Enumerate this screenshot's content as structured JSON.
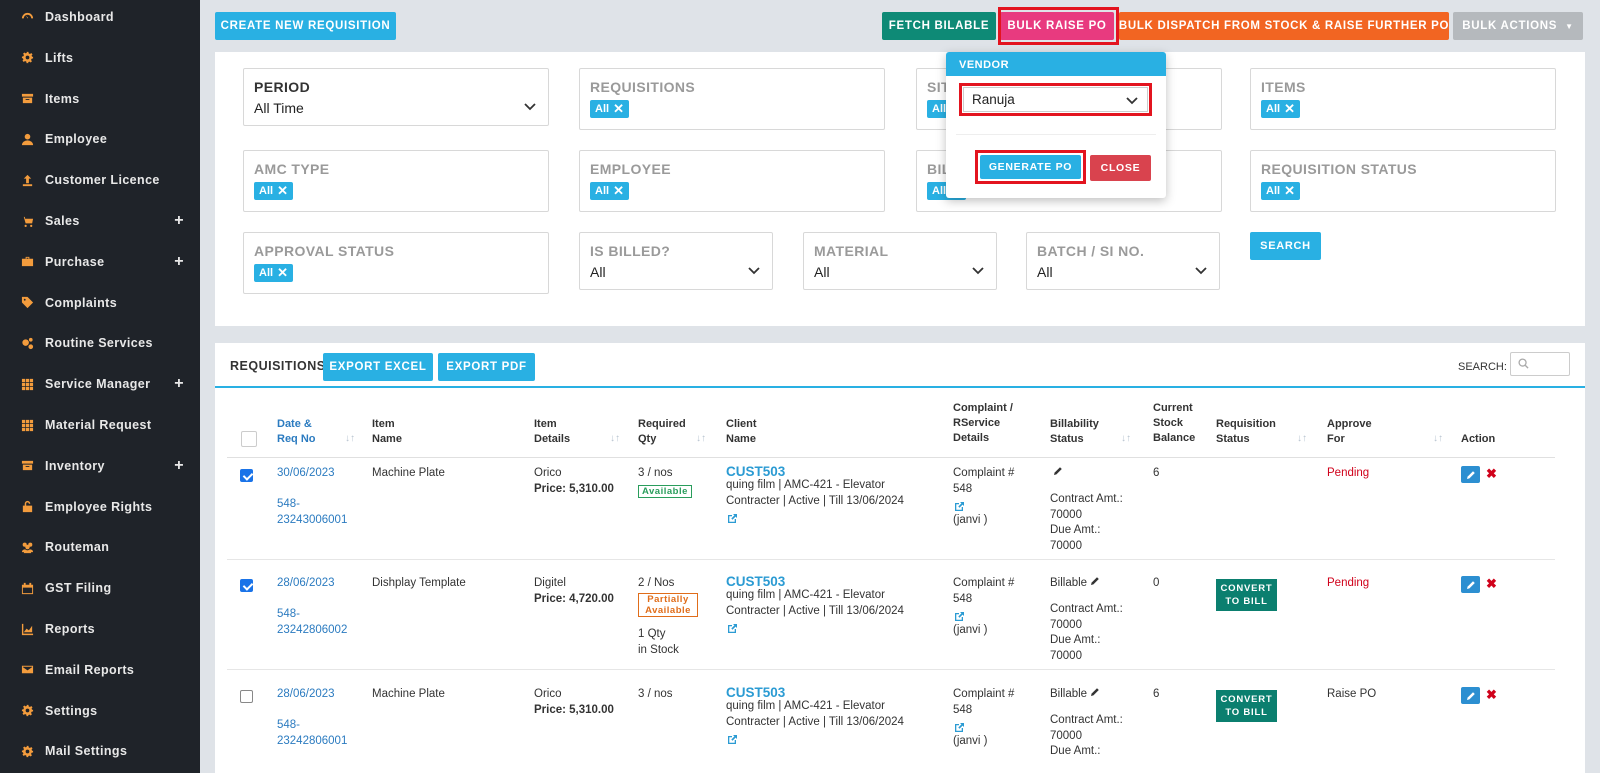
{
  "colors": {
    "sidebar_bg": "#1f2329",
    "icon_orange": "#f39c3d",
    "primary": "#29b0e3",
    "teal": "#0e8a76",
    "pink": "#e83a7f",
    "orange": "#f26522",
    "grey": "#b5b9bd",
    "danger": "#d9434e",
    "highlight": "#e3141f"
  },
  "sidebar": {
    "items": [
      {
        "label": "Dashboard",
        "icon": "dashboard-icon",
        "expandable": false
      },
      {
        "label": "Lifts",
        "icon": "gear-icon",
        "expandable": false
      },
      {
        "label": "Items",
        "icon": "archive-icon",
        "expandable": false
      },
      {
        "label": "Employee",
        "icon": "user-icon",
        "expandable": false
      },
      {
        "label": "Customer Licence",
        "icon": "upload-arrow-icon",
        "expandable": false
      },
      {
        "label": "Sales",
        "icon": "cart-icon",
        "expandable": true
      },
      {
        "label": "Purchase",
        "icon": "briefcase-icon",
        "expandable": true
      },
      {
        "label": "Complaints",
        "icon": "tag-icon",
        "expandable": false
      },
      {
        "label": "Routine Services",
        "icon": "cogs-icon",
        "expandable": false
      },
      {
        "label": "Service Manager",
        "icon": "grid-icon",
        "expandable": true
      },
      {
        "label": "Material Request",
        "icon": "grid-icon",
        "expandable": false
      },
      {
        "label": "Inventory",
        "icon": "archive-icon",
        "expandable": true
      },
      {
        "label": "Employee Rights",
        "icon": "unlock-icon",
        "expandable": false
      },
      {
        "label": "Routeman",
        "icon": "users-icon",
        "expandable": false
      },
      {
        "label": "GST Filing",
        "icon": "calendar-icon",
        "expandable": false
      },
      {
        "label": "Reports",
        "icon": "area-chart-icon",
        "expandable": false
      },
      {
        "label": "Email Reports",
        "icon": "envelope-icon",
        "expandable": false
      },
      {
        "label": "Settings",
        "icon": "gear-icon",
        "expandable": false
      },
      {
        "label": "Mail Settings",
        "icon": "gear-icon",
        "expandable": false
      }
    ],
    "plus_symbol": "+"
  },
  "toolbar": {
    "create_label": "CREATE NEW REQUISITION",
    "fetch_label": "FETCH BILABLE",
    "bulk_raise_label": "BULK RAISE PO",
    "bulk_dispatch_label": "BULK DISPATCH FROM STOCK & RAISE FURTHER PO",
    "bulk_actions_label": "BULK ACTIONS"
  },
  "filters": {
    "period": {
      "label": "PERIOD",
      "value": "All Time"
    },
    "requisitions": {
      "label": "REQUISITIONS",
      "tag": "All"
    },
    "site": {
      "label": "SIT",
      "tag": "All"
    },
    "items": {
      "label": "ITEMS",
      "tag": "All"
    },
    "amc_type": {
      "label": "AMC TYPE",
      "tag": "All"
    },
    "employee": {
      "label": "EMPLOYEE",
      "tag": "All"
    },
    "billing": {
      "label": "BIL",
      "tag": "All"
    },
    "requisition_status": {
      "label": "REQUISITION STATUS",
      "tag": "All"
    },
    "approval_status": {
      "label": "APPROVAL STATUS",
      "tag": "All"
    },
    "is_billed": {
      "label": "IS BILLED?",
      "value": "All"
    },
    "material": {
      "label": "MATERIAL",
      "value": "All"
    },
    "batch": {
      "label": "BATCH / SI NO.",
      "value": "All"
    },
    "search_label": "SEARCH",
    "tag_close": "✕"
  },
  "vendor_popover": {
    "title": "VENDOR",
    "selected": "Ranuja",
    "generate_label": "GENERATE PO",
    "close_label": "CLOSE"
  },
  "requisitions": {
    "title": "REQUISITIONS",
    "export_excel": "EXPORT EXCEL",
    "export_pdf": "EXPORT PDF",
    "search_label": "SEARCH:",
    "search_value": "",
    "headers": {
      "date_a": "Date &",
      "date_b": "Req No",
      "item_a": "Item",
      "item_b": "Name",
      "details_a": "Item",
      "details_b": "Details",
      "qty_a": "Required",
      "qty_b": "Qty",
      "client_a": "Client",
      "client_b": "Name",
      "complaint_a": "Complaint /",
      "complaint_b": "RService",
      "complaint_c": "Details",
      "bill_a": "Billability",
      "bill_b": "Status",
      "stock_a": "Current",
      "stock_b": "Stock",
      "stock_c": "Balance",
      "status_a": "Requisition",
      "status_b": "Status",
      "approve_a": "Approve",
      "approve_b": "For",
      "action": "Action"
    },
    "sort_glyph": "↓↑",
    "rows": [
      {
        "checked": true,
        "date": "30/06/2023",
        "req_a": "548-",
        "req_b": "23243006001",
        "item": "Machine Plate",
        "details_a": "Orico",
        "details_b": "Price: 5,310.00",
        "qty": "3 / nos",
        "qty_badge": "Available",
        "qty_extra_a": "",
        "qty_extra_b": "",
        "client": "CUST503",
        "client_a": "quing film | AMC-421 - Elevator",
        "client_b": "Contracter | Active | Till 13/06/2024",
        "complaint_a": "Complaint #",
        "complaint_b": "548",
        "complaint_c": "(janvi )",
        "bill_status": "",
        "contract_a": "Contract Amt.:",
        "contract_b": "70000",
        "due_a": "Due Amt.:",
        "due_b": "70000",
        "stock": "6",
        "convert": false,
        "convert_label": "",
        "approve": "Pending"
      },
      {
        "checked": true,
        "date": "28/06/2023",
        "req_a": "548-",
        "req_b": "23242806002",
        "item": "Dishplay Template",
        "details_a": "Digitel",
        "details_b": "Price: 4,720.00",
        "qty": "2 / Nos",
        "qty_badge": "Partially Available",
        "qty_extra_a": "1 Qty",
        "qty_extra_b": "in Stock",
        "client": "CUST503",
        "client_a": "quing film | AMC-421 - Elevator",
        "client_b": "Contracter | Active | Till 13/06/2024",
        "complaint_a": "Complaint #",
        "complaint_b": "548",
        "complaint_c": "(janvi )",
        "bill_status": "Billable",
        "contract_a": "Contract Amt.:",
        "contract_b": "70000",
        "due_a": "Due Amt.:",
        "due_b": "70000",
        "stock": "0",
        "convert": true,
        "convert_label": "CONVERT TO BILL",
        "approve": "Pending"
      },
      {
        "checked": false,
        "date": "28/06/2023",
        "req_a": "548-",
        "req_b": "23242806001",
        "item": "Machine Plate",
        "details_a": "Orico",
        "details_b": "Price: 5,310.00",
        "qty": "3 / nos",
        "qty_badge": "",
        "qty_extra_a": "",
        "qty_extra_b": "",
        "client": "CUST503",
        "client_a": "quing film | AMC-421 - Elevator",
        "client_b": "Contracter | Active | Till 13/06/2024",
        "complaint_a": "Complaint #",
        "complaint_b": "548",
        "complaint_c": "(janvi )",
        "bill_status": "Billable",
        "contract_a": "Contract Amt.:",
        "contract_b": "70000",
        "due_a": "Due Amt.:",
        "due_b": "",
        "stock": "6",
        "convert": true,
        "convert_label": "CONVERT TO BILL",
        "approve": "Raise PO"
      }
    ],
    "delete_glyph": "✖"
  }
}
